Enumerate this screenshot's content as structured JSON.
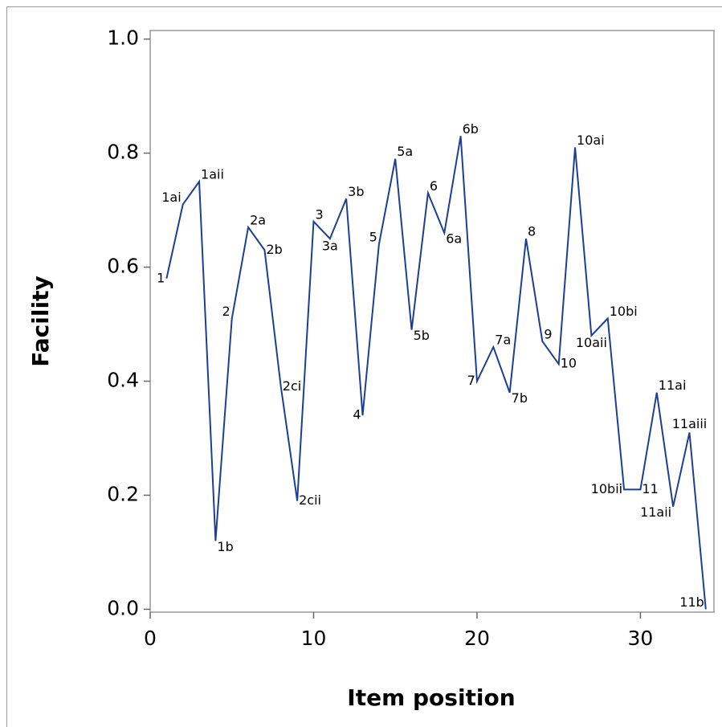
{
  "chart_data": {
    "type": "line",
    "x_label": "Item position",
    "y_label": "Facility",
    "x": [
      1,
      2,
      3,
      4,
      5,
      6,
      7,
      8,
      9,
      10,
      11,
      12,
      13,
      14,
      15,
      16,
      17,
      18,
      19,
      20,
      21,
      22,
      23,
      24,
      25,
      26,
      27,
      28,
      29,
      30,
      31,
      32,
      33,
      34
    ],
    "point_labels": [
      "1",
      "1ai",
      "1aii",
      "1b",
      "2",
      "2a",
      "2b",
      "2ci",
      "2cii",
      "3",
      "3a",
      "3b",
      "4",
      "5",
      "5a",
      "5b",
      "6",
      "6a",
      "6b",
      "7",
      "7a",
      "7b",
      "8",
      "9",
      "10",
      "10ai",
      "10aii",
      "10bi",
      "10bii",
      "11",
      "11ai",
      "11aii",
      "11aiii",
      "11b"
    ],
    "series": [
      {
        "name": "Facility",
        "color": "#1b3f94",
        "values": [
          0.58,
          0.71,
          0.75,
          0.12,
          0.51,
          0.67,
          0.63,
          0.39,
          0.19,
          0.68,
          0.65,
          0.72,
          0.34,
          0.64,
          0.79,
          0.49,
          0.73,
          0.66,
          0.83,
          0.4,
          0.46,
          0.38,
          0.65,
          0.47,
          0.43,
          0.81,
          0.48,
          0.51,
          0.21,
          0.21,
          0.38,
          0.18,
          0.31,
          0.0
        ]
      }
    ],
    "xlim": [
      0,
      34.5
    ],
    "ylim": [
      -0.005,
      1.015
    ],
    "xticks": [
      0,
      10,
      20,
      30
    ],
    "yticks": [
      {
        "value": 0,
        "label": "0.0"
      },
      0.2,
      0.4,
      0.6,
      0.8,
      {
        "value": 1,
        "label": "1.0"
      }
    ]
  }
}
